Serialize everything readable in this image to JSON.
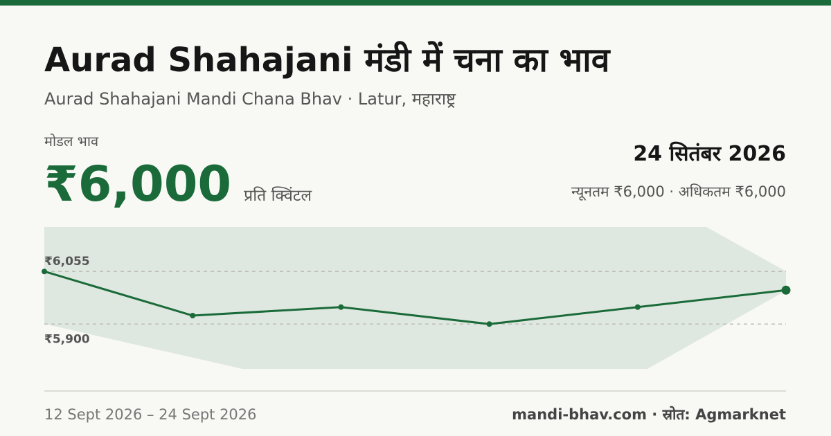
{
  "header": {
    "title": "Aurad Shahajani मंडी में चना का भाव",
    "subtitle": "Aurad Shahajani Mandi Chana Bhav · Latur, महाराष्ट्र"
  },
  "price": {
    "label": "मोडल भाव",
    "value": "₹6,000",
    "unit": "प्रति क्विंटल"
  },
  "date": "24 सितंबर 2026",
  "range": "न्यूनतम ₹6,000 · अधिकतम ₹6,000",
  "chart_data": {
    "type": "line",
    "values": [
      6055,
      5925,
      5950,
      5900,
      5950,
      6000
    ],
    "color": "#1b6b3a",
    "ylim": [
      5768,
      6186
    ],
    "yticks": [
      {
        "value": 6055,
        "label": "₹6,055"
      },
      {
        "value": 5900,
        "label": "₹5,900"
      }
    ],
    "grid": true
  },
  "footer": {
    "period": "12 Sept 2026 – 24 Sept 2026",
    "source": "mandi-bhav.com · स्रोत: Agmarknet"
  }
}
